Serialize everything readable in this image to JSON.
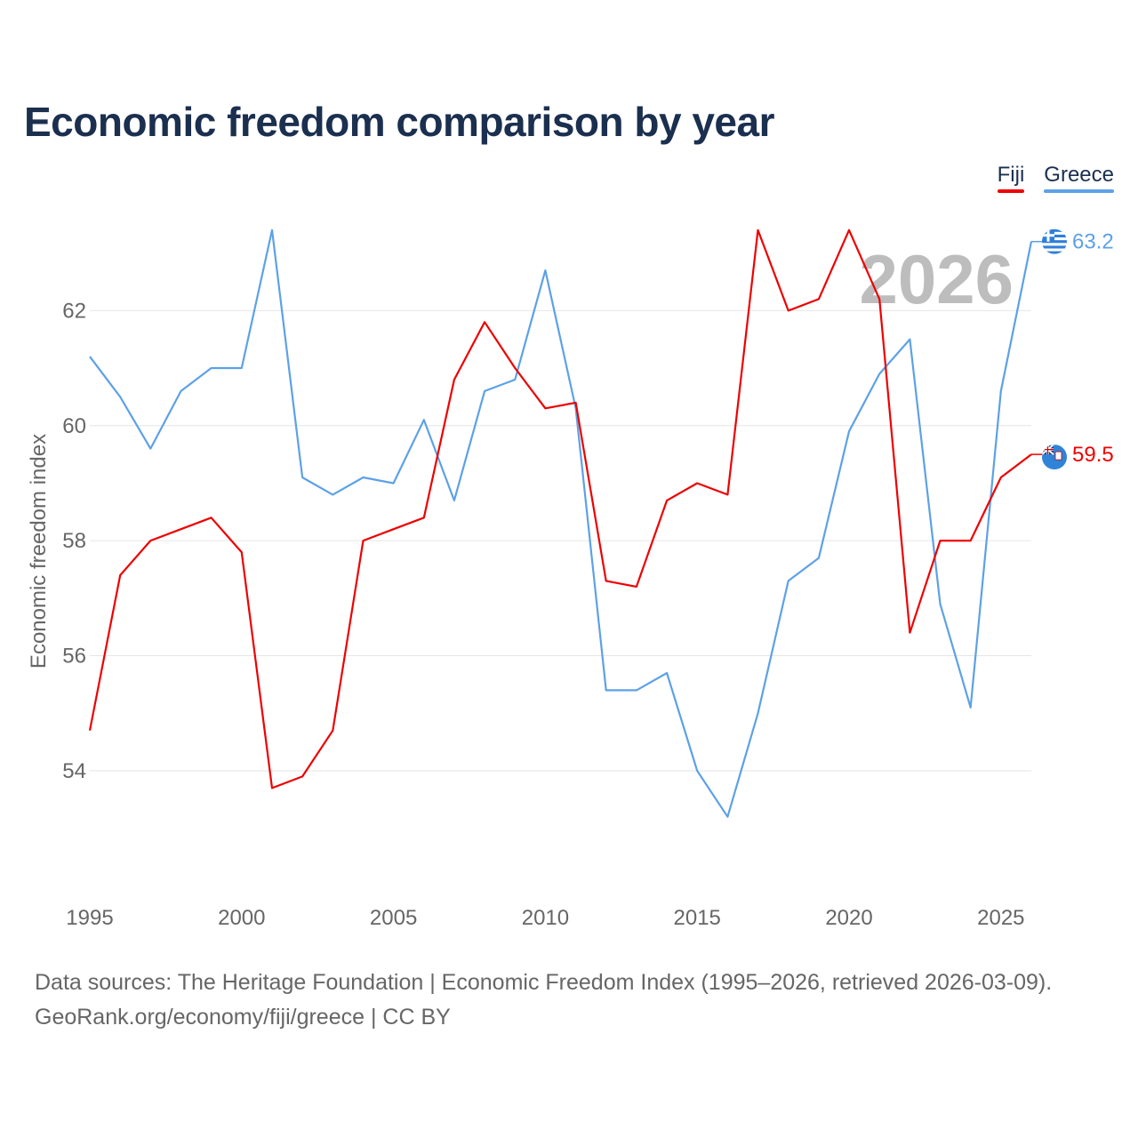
{
  "title": "Economic freedom comparison by year",
  "legend": [
    {
      "label": "Fiji",
      "color": "#ee0000"
    },
    {
      "label": "Greece",
      "color": "#5da1e6"
    }
  ],
  "year_label": "2026",
  "source_line1": "Data sources: The Heritage Foundation | Economic Freedom Index (1995–2026, retrieved 2026-03-09).",
  "source_line2_link": "GeoRank.org/economy/fiji/greece",
  "source_line2_suffix": " | CC BY",
  "chart_data": {
    "type": "line",
    "title": "Economic freedom comparison by year",
    "xlabel": "",
    "ylabel": "Economic freedom index",
    "x": [
      1995,
      1996,
      1997,
      1998,
      1999,
      2000,
      2001,
      2002,
      2003,
      2004,
      2005,
      2006,
      2007,
      2008,
      2009,
      2010,
      2011,
      2012,
      2013,
      2014,
      2015,
      2016,
      2017,
      2018,
      2019,
      2020,
      2021,
      2022,
      2023,
      2024,
      2025,
      2026
    ],
    "xlim": [
      1995,
      2026
    ],
    "xticks": [
      1995,
      2000,
      2005,
      2010,
      2015,
      2020,
      2025
    ],
    "ylim": [
      52.5,
      64
    ],
    "yticks": [
      54,
      56,
      58,
      60,
      62
    ],
    "grid": true,
    "legend_position": "top-right",
    "series": [
      {
        "name": "Fiji",
        "color": "#ee0000",
        "end_label": "59.5",
        "icon": "fiji-flag-icon",
        "values": [
          54.7,
          57.4,
          58.0,
          58.2,
          58.4,
          57.8,
          53.7,
          53.9,
          54.7,
          58.0,
          58.2,
          58.4,
          60.8,
          61.8,
          61.0,
          60.3,
          60.4,
          57.3,
          57.2,
          58.7,
          59.0,
          58.8,
          63.4,
          62.0,
          62.2,
          63.4,
          62.2,
          56.4,
          58.0,
          58.0,
          59.1,
          59.5
        ]
      },
      {
        "name": "Greece",
        "color": "#5da1e6",
        "end_label": "63.2",
        "icon": "greece-flag-icon",
        "values": [
          61.2,
          60.5,
          59.6,
          60.6,
          61.0,
          61.0,
          63.4,
          59.1,
          58.8,
          59.1,
          59.0,
          60.1,
          58.7,
          60.6,
          60.8,
          62.7,
          60.3,
          55.4,
          55.4,
          55.7,
          54.0,
          53.2,
          55.0,
          57.3,
          57.7,
          59.9,
          60.9,
          61.5,
          56.9,
          55.1,
          60.6,
          63.2
        ]
      }
    ]
  }
}
